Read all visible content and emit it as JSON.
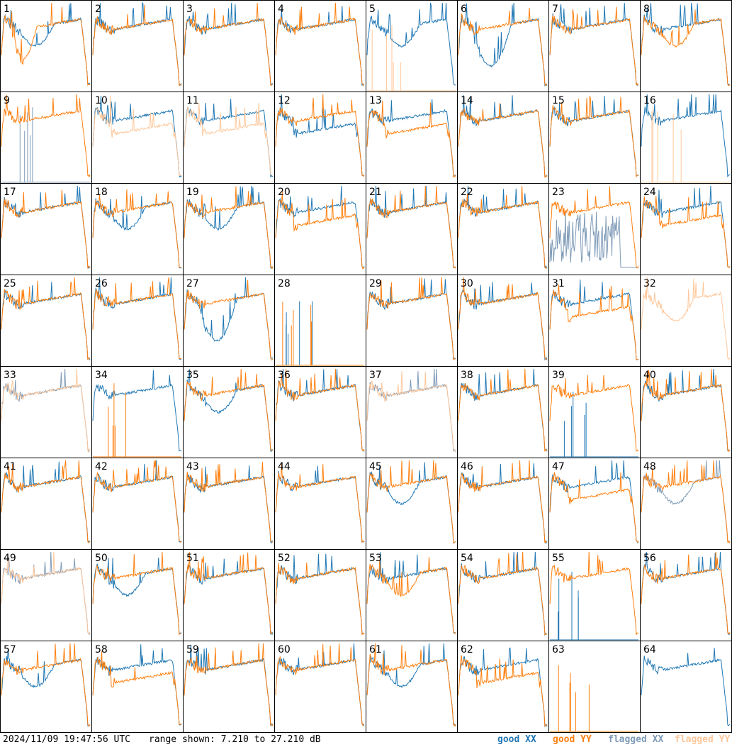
{
  "footer": {
    "timestamp": "2024/11/09 19:47:56 UTC",
    "range_text": "range shown: 7.210 to 27.210 dB"
  },
  "legend": [
    {
      "label": "good XX",
      "color": "#1f77b4"
    },
    {
      "label": "good YY",
      "color": "#ff7f0e"
    },
    {
      "label": "flagged XX",
      "color": "#7f9bb8"
    },
    {
      "label": "flagged YY",
      "color": "#ffc79a"
    }
  ],
  "colors": {
    "good_xx": "#1f77b4",
    "good_yy": "#ff7f0e",
    "flagged_xx": "#7f9bb8",
    "flagged_yy": "#ffc79a",
    "grid_line": "#000000"
  },
  "chart_data": {
    "type": "line",
    "layout": "8x8 small multiples",
    "ylim": [
      7.21,
      27.21
    ],
    "yunit": "dB",
    "panels": [
      {
        "id": 1,
        "xx": {
          "state": "good",
          "shape": "dip"
        },
        "yy": {
          "state": "good",
          "shape": "lowdip"
        }
      },
      {
        "id": 2,
        "xx": {
          "state": "good",
          "shape": "normal"
        },
        "yy": {
          "state": "good",
          "shape": "normal"
        }
      },
      {
        "id": 3,
        "xx": {
          "state": "good",
          "shape": "normal"
        },
        "yy": {
          "state": "good",
          "shape": "normal"
        }
      },
      {
        "id": 4,
        "xx": {
          "state": "good",
          "shape": "normal"
        },
        "yy": {
          "state": "good",
          "shape": "normal"
        }
      },
      {
        "id": 5,
        "xx": {
          "state": "good",
          "shape": "dip"
        },
        "yy": {
          "state": "flagged",
          "shape": "spikes"
        }
      },
      {
        "id": 6,
        "xx": {
          "state": "good",
          "shape": "bigdip"
        },
        "yy": {
          "state": "good",
          "shape": "normal"
        }
      },
      {
        "id": 7,
        "xx": {
          "state": "good",
          "shape": "normal"
        },
        "yy": {
          "state": "good",
          "shape": "normal"
        }
      },
      {
        "id": 8,
        "xx": {
          "state": "good",
          "shape": "normal"
        },
        "yy": {
          "state": "good",
          "shape": "dip"
        }
      },
      {
        "id": 9,
        "xx": {
          "state": "flagged",
          "shape": "spikes"
        },
        "yy": {
          "state": "good",
          "shape": "normal"
        }
      },
      {
        "id": 10,
        "xx": {
          "state": "good",
          "shape": "normal"
        },
        "yy": {
          "state": "flagged",
          "shape": "lowflat"
        }
      },
      {
        "id": 11,
        "xx": {
          "state": "good",
          "shape": "normal"
        },
        "yy": {
          "state": "flagged",
          "shape": "lowflat"
        }
      },
      {
        "id": 12,
        "xx": {
          "state": "good",
          "shape": "lowflat"
        },
        "yy": {
          "state": "good",
          "shape": "normal"
        }
      },
      {
        "id": 13,
        "xx": {
          "state": "good",
          "shape": "normal"
        },
        "yy": {
          "state": "good",
          "shape": "lowflat"
        }
      },
      {
        "id": 14,
        "xx": {
          "state": "good",
          "shape": "normal"
        },
        "yy": {
          "state": "good",
          "shape": "normal"
        }
      },
      {
        "id": 15,
        "xx": {
          "state": "good",
          "shape": "normal"
        },
        "yy": {
          "state": "good",
          "shape": "normal"
        }
      },
      {
        "id": 16,
        "xx": {
          "state": "good",
          "shape": "normal"
        },
        "yy": {
          "state": "flagged",
          "shape": "spikes"
        }
      },
      {
        "id": 17,
        "xx": {
          "state": "good",
          "shape": "normal"
        },
        "yy": {
          "state": "good",
          "shape": "normal"
        }
      },
      {
        "id": 18,
        "xx": {
          "state": "good",
          "shape": "dip"
        },
        "yy": {
          "state": "good",
          "shape": "normal"
        }
      },
      {
        "id": 19,
        "xx": {
          "state": "good",
          "shape": "dip"
        },
        "yy": {
          "state": "good",
          "shape": "normal"
        }
      },
      {
        "id": 20,
        "xx": {
          "state": "good",
          "shape": "normal"
        },
        "yy": {
          "state": "good",
          "shape": "lowflat"
        }
      },
      {
        "id": 21,
        "xx": {
          "state": "good",
          "shape": "normal"
        },
        "yy": {
          "state": "good",
          "shape": "normal"
        }
      },
      {
        "id": 22,
        "xx": {
          "state": "good",
          "shape": "normal"
        },
        "yy": {
          "state": "good",
          "shape": "normal"
        }
      },
      {
        "id": 23,
        "xx": {
          "state": "flagged",
          "shape": "noise"
        },
        "yy": {
          "state": "good",
          "shape": "normal"
        }
      },
      {
        "id": 24,
        "xx": {
          "state": "good",
          "shape": "normal"
        },
        "yy": {
          "state": "good",
          "shape": "lowflat"
        }
      },
      {
        "id": 25,
        "xx": {
          "state": "good",
          "shape": "normal"
        },
        "yy": {
          "state": "good",
          "shape": "normal"
        }
      },
      {
        "id": 26,
        "xx": {
          "state": "good",
          "shape": "normal"
        },
        "yy": {
          "state": "good",
          "shape": "normal"
        }
      },
      {
        "id": 27,
        "xx": {
          "state": "good",
          "shape": "bigdip"
        },
        "yy": {
          "state": "good",
          "shape": "normal"
        }
      },
      {
        "id": 28,
        "xx": {
          "state": "good",
          "shape": "spikes"
        },
        "yy": {
          "state": "good",
          "shape": "spikes"
        }
      },
      {
        "id": 29,
        "xx": {
          "state": "good",
          "shape": "normal"
        },
        "yy": {
          "state": "good",
          "shape": "normal"
        }
      },
      {
        "id": 30,
        "xx": {
          "state": "good",
          "shape": "normal"
        },
        "yy": {
          "state": "good",
          "shape": "normal"
        }
      },
      {
        "id": 31,
        "xx": {
          "state": "good",
          "shape": "normal"
        },
        "yy": {
          "state": "good",
          "shape": "lowflat"
        }
      },
      {
        "id": 32,
        "xx": {
          "state": "none",
          "shape": "none"
        },
        "yy": {
          "state": "flagged",
          "shape": "dip"
        }
      },
      {
        "id": 33,
        "xx": {
          "state": "flagged",
          "shape": "normal"
        },
        "yy": {
          "state": "flagged",
          "shape": "normal"
        }
      },
      {
        "id": 34,
        "xx": {
          "state": "good",
          "shape": "normal"
        },
        "yy": {
          "state": "good",
          "shape": "spikes"
        }
      },
      {
        "id": 35,
        "xx": {
          "state": "good",
          "shape": "dip"
        },
        "yy": {
          "state": "good",
          "shape": "normal"
        }
      },
      {
        "id": 36,
        "xx": {
          "state": "good",
          "shape": "normal"
        },
        "yy": {
          "state": "good",
          "shape": "normal"
        }
      },
      {
        "id": 37,
        "xx": {
          "state": "flagged",
          "shape": "normal"
        },
        "yy": {
          "state": "flagged",
          "shape": "normal"
        }
      },
      {
        "id": 38,
        "xx": {
          "state": "good",
          "shape": "normal"
        },
        "yy": {
          "state": "good",
          "shape": "normal"
        }
      },
      {
        "id": 39,
        "xx": {
          "state": "good",
          "shape": "spikes"
        },
        "yy": {
          "state": "good",
          "shape": "normal"
        }
      },
      {
        "id": 40,
        "xx": {
          "state": "good",
          "shape": "normal"
        },
        "yy": {
          "state": "good",
          "shape": "normal"
        }
      },
      {
        "id": 41,
        "xx": {
          "state": "good",
          "shape": "normal"
        },
        "yy": {
          "state": "good",
          "shape": "normal"
        }
      },
      {
        "id": 42,
        "xx": {
          "state": "good",
          "shape": "normal"
        },
        "yy": {
          "state": "good",
          "shape": "normal"
        }
      },
      {
        "id": 43,
        "xx": {
          "state": "good",
          "shape": "normal"
        },
        "yy": {
          "state": "good",
          "shape": "normal"
        }
      },
      {
        "id": 44,
        "xx": {
          "state": "good",
          "shape": "normal"
        },
        "yy": {
          "state": "good",
          "shape": "normal"
        }
      },
      {
        "id": 45,
        "xx": {
          "state": "good",
          "shape": "dip"
        },
        "yy": {
          "state": "good",
          "shape": "normal"
        }
      },
      {
        "id": 46,
        "xx": {
          "state": "good",
          "shape": "normal"
        },
        "yy": {
          "state": "good",
          "shape": "normal"
        }
      },
      {
        "id": 47,
        "xx": {
          "state": "good",
          "shape": "normal"
        },
        "yy": {
          "state": "good",
          "shape": "lowflat"
        }
      },
      {
        "id": 48,
        "xx": {
          "state": "flagged",
          "shape": "dip"
        },
        "yy": {
          "state": "good",
          "shape": "normal"
        }
      },
      {
        "id": 49,
        "xx": {
          "state": "flagged",
          "shape": "normal"
        },
        "yy": {
          "state": "flagged",
          "shape": "normal"
        }
      },
      {
        "id": 50,
        "xx": {
          "state": "good",
          "shape": "dip"
        },
        "yy": {
          "state": "good",
          "shape": "normal"
        }
      },
      {
        "id": 51,
        "xx": {
          "state": "good",
          "shape": "normal"
        },
        "yy": {
          "state": "good",
          "shape": "normal"
        }
      },
      {
        "id": 52,
        "xx": {
          "state": "good",
          "shape": "normal"
        },
        "yy": {
          "state": "good",
          "shape": "normal"
        }
      },
      {
        "id": 53,
        "xx": {
          "state": "good",
          "shape": "normal"
        },
        "yy": {
          "state": "good",
          "shape": "dip"
        }
      },
      {
        "id": 54,
        "xx": {
          "state": "good",
          "shape": "normal"
        },
        "yy": {
          "state": "good",
          "shape": "normal"
        }
      },
      {
        "id": 55,
        "xx": {
          "state": "good",
          "shape": "spikes"
        },
        "yy": {
          "state": "good",
          "shape": "normal"
        }
      },
      {
        "id": 56,
        "xx": {
          "state": "good",
          "shape": "normal"
        },
        "yy": {
          "state": "good",
          "shape": "normal"
        }
      },
      {
        "id": 57,
        "xx": {
          "state": "good",
          "shape": "dip"
        },
        "yy": {
          "state": "good",
          "shape": "normal"
        }
      },
      {
        "id": 58,
        "xx": {
          "state": "good",
          "shape": "normal"
        },
        "yy": {
          "state": "good",
          "shape": "lowflat"
        }
      },
      {
        "id": 59,
        "xx": {
          "state": "good",
          "shape": "normal"
        },
        "yy": {
          "state": "good",
          "shape": "normal"
        }
      },
      {
        "id": 60,
        "xx": {
          "state": "good",
          "shape": "normal"
        },
        "yy": {
          "state": "good",
          "shape": "normal"
        }
      },
      {
        "id": 61,
        "xx": {
          "state": "good",
          "shape": "dip"
        },
        "yy": {
          "state": "good",
          "shape": "normal"
        }
      },
      {
        "id": 62,
        "xx": {
          "state": "good",
          "shape": "normal"
        },
        "yy": {
          "state": "good",
          "shape": "lowflat"
        }
      },
      {
        "id": 63,
        "xx": {
          "state": "none",
          "shape": "none"
        },
        "yy": {
          "state": "good",
          "shape": "spikes"
        }
      },
      {
        "id": 64,
        "xx": {
          "state": "good",
          "shape": "normal"
        },
        "yy": {
          "state": "none",
          "shape": "none"
        }
      }
    ]
  }
}
